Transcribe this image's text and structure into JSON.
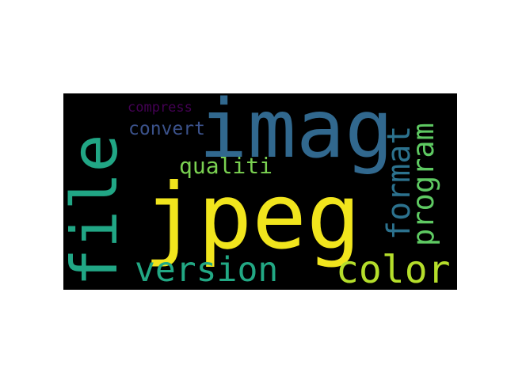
{
  "wordcloud": {
    "background": "#000000",
    "words": {
      "jpeg": {
        "text": "jpeg",
        "color": "#f1e51d"
      },
      "imag": {
        "text": "imag",
        "color": "#31688e"
      },
      "file": {
        "text": "file",
        "color": "#21a685"
      },
      "version": {
        "text": "version",
        "color": "#22a884"
      },
      "color": {
        "text": "color",
        "color": "#b5de2b"
      },
      "format": {
        "text": "format",
        "color": "#2c728e"
      },
      "program": {
        "text": "program",
        "color": "#5ec962"
      },
      "qualiti": {
        "text": "qualiti",
        "color": "#7ad151"
      },
      "convert": {
        "text": "convert",
        "color": "#3b528b"
      },
      "compress": {
        "text": "compress",
        "color": "#440154"
      }
    }
  }
}
